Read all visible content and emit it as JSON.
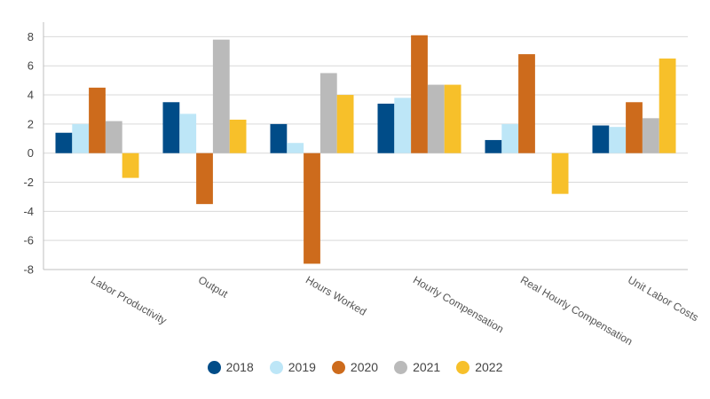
{
  "chart_data": {
    "type": "bar",
    "title": "",
    "xlabel": "",
    "ylabel": "",
    "ylim": [
      -8,
      9
    ],
    "yticks": [
      -8,
      -6,
      -4,
      -2,
      0,
      2,
      4,
      6,
      8
    ],
    "grid": true,
    "legend_position": "bottom",
    "categories": [
      "Labor Productivity",
      "Output",
      "Hours Worked",
      "Hourly Compensation",
      "Real Hourly Compensation",
      "Unit Labor Costs"
    ],
    "series": [
      {
        "name": "2018",
        "color": "#004c88",
        "values": [
          1.4,
          3.5,
          2.0,
          3.4,
          0.9,
          1.9
        ]
      },
      {
        "name": "2019",
        "color": "#bde6f7",
        "values": [
          2.0,
          2.7,
          0.7,
          3.8,
          2.0,
          1.8
        ]
      },
      {
        "name": "2020",
        "color": "#cd6b1c",
        "values": [
          4.5,
          -3.5,
          -7.6,
          8.1,
          6.8,
          3.5
        ]
      },
      {
        "name": "2021",
        "color": "#bababa",
        "values": [
          2.2,
          7.8,
          5.5,
          4.7,
          0.0,
          2.4
        ]
      },
      {
        "name": "2022",
        "color": "#f7c02a",
        "values": [
          -1.7,
          2.3,
          4.0,
          4.7,
          -2.8,
          6.5
        ]
      }
    ]
  }
}
